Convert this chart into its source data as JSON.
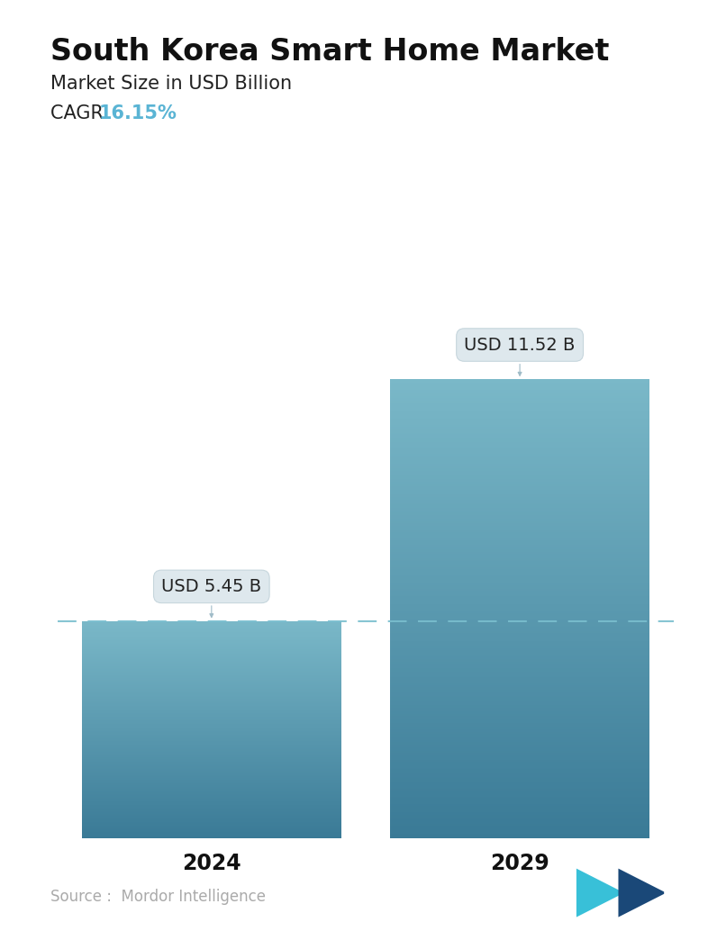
{
  "title": "South Korea Smart Home Market",
  "subtitle": "Market Size in USD Billion",
  "cagr_label": "CAGR ",
  "cagr_value": "16.15%",
  "cagr_color": "#5ab4d4",
  "categories": [
    "2024",
    "2029"
  ],
  "values": [
    5.45,
    11.52
  ],
  "labels": [
    "USD 5.45 B",
    "USD 11.52 B"
  ],
  "bar_color_top": "#6ab0c0",
  "bar_color_bottom": "#3a7090",
  "dashed_line_color": "#7abfcf",
  "dashed_line_y": 5.45,
  "background_color": "#ffffff",
  "source_text": "Source :  Mordor Intelligence",
  "source_color": "#aaaaaa",
  "title_fontsize": 24,
  "subtitle_fontsize": 15,
  "cagr_fontsize": 15,
  "xlabel_fontsize": 17,
  "label_fontsize": 14,
  "ylim": [
    0,
    14.5
  ],
  "bar_width": 0.42
}
